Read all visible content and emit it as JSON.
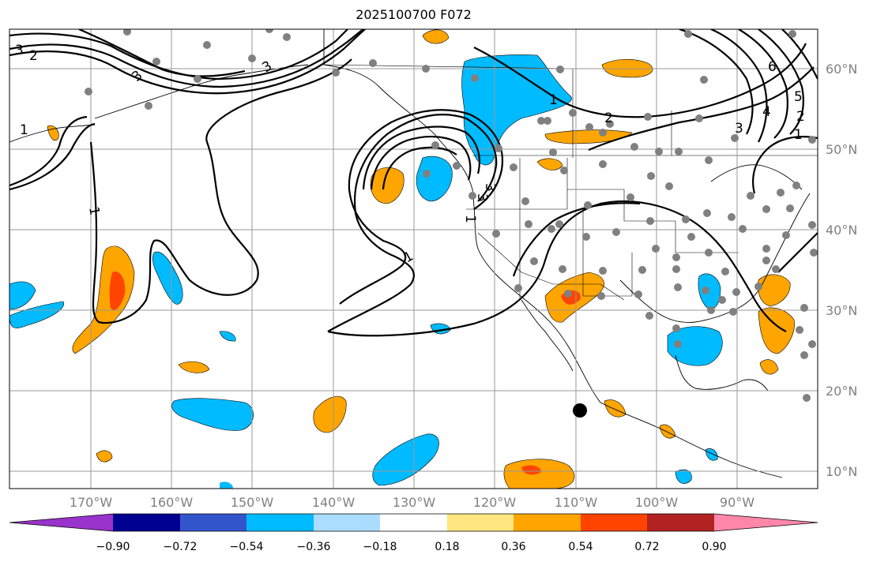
{
  "title": "2025100700 F072",
  "latitude_labels": [
    "60°N",
    "50°N",
    "40°N",
    "30°N",
    "20°N",
    "10°N"
  ],
  "longitude_labels": [
    "170°W",
    "160°W",
    "150°W",
    "140°W",
    "130°W",
    "120°W",
    "110°W",
    "100°W",
    "90°W"
  ],
  "colorbar": {
    "tick_labels": [
      "−0.90",
      "−0.72",
      "−0.54",
      "−0.36",
      "−0.18",
      "0.18",
      "0.36",
      "0.54",
      "0.72",
      "0.90"
    ],
    "colors": [
      "#9933cc",
      "#000090",
      "#3355cc",
      "#00bbff",
      "#aaddff",
      "#ffffff",
      "#ffe680",
      "#ffa500",
      "#ff4400",
      "#b22222",
      "#ff88aa"
    ]
  },
  "contour_labels": [
    "3",
    "2",
    "3",
    "1",
    "1",
    "2",
    "3",
    "1",
    "2",
    "3",
    "4",
    "5",
    "6",
    "1",
    "1",
    "3",
    "1",
    "3"
  ],
  "colors": {
    "ocean": "#ffffff",
    "grid": "#999999",
    "contour": "#000000",
    "station": "#808080",
    "marker": "#000000"
  }
}
